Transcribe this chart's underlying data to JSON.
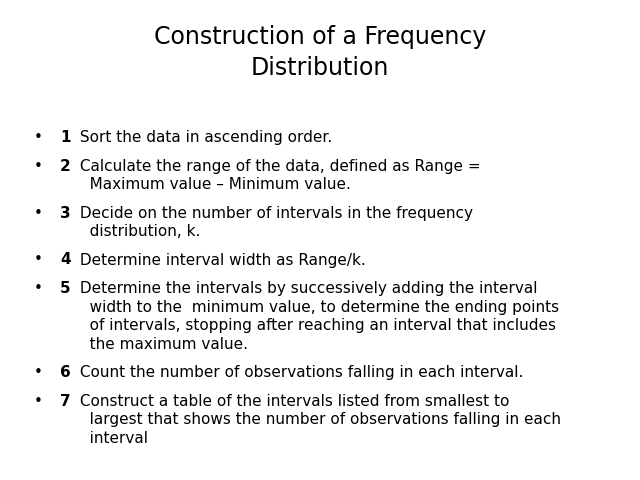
{
  "title": "Construction of a Frequency\nDistribution",
  "title_fontsize": 17,
  "background_color": "#ffffff",
  "text_color": "#000000",
  "bullet_items": [
    {
      "number": "1",
      "text_plain": " Sort the data in ascending order.",
      "text_parts": [
        " Sort the data in ascending order."
      ],
      "italic_word": "",
      "continuation": []
    },
    {
      "number": "2",
      "text_parts": [
        " Calculate the range of the data, defined as Range ="
      ],
      "continuation": [
        "   Maximum value – Minimum value."
      ],
      "italic_word": ""
    },
    {
      "number": "3",
      "text_parts": [
        " Decide on the number of intervals in the frequency"
      ],
      "continuation": [
        "   distribution, k."
      ],
      "italic_word": "k",
      "italic_in_continuation": true
    },
    {
      "number": "4",
      "text_parts": [
        " Determine interval width as Range/k."
      ],
      "continuation": [],
      "italic_word": "k"
    },
    {
      "number": "5",
      "text_parts": [
        " Determine the intervals by successively adding the interval"
      ],
      "continuation": [
        "   width to the  minimum value, to determine the ending points",
        "   of intervals, stopping after reaching an interval that includes",
        "   the maximum value."
      ],
      "italic_word": ""
    },
    {
      "number": "6",
      "text_parts": [
        " Count the number of observations falling in each interval."
      ],
      "continuation": [],
      "italic_word": ""
    },
    {
      "number": "7",
      "text_parts": [
        " Construct a table of the intervals listed from smallest to"
      ],
      "continuation": [
        "   largest that shows the number of observations falling in each",
        "   interval"
      ],
      "italic_word": ""
    }
  ],
  "body_fontsize": 11,
  "bullet_char": "•",
  "fig_width": 6.4,
  "fig_height": 4.8,
  "dpi": 100
}
